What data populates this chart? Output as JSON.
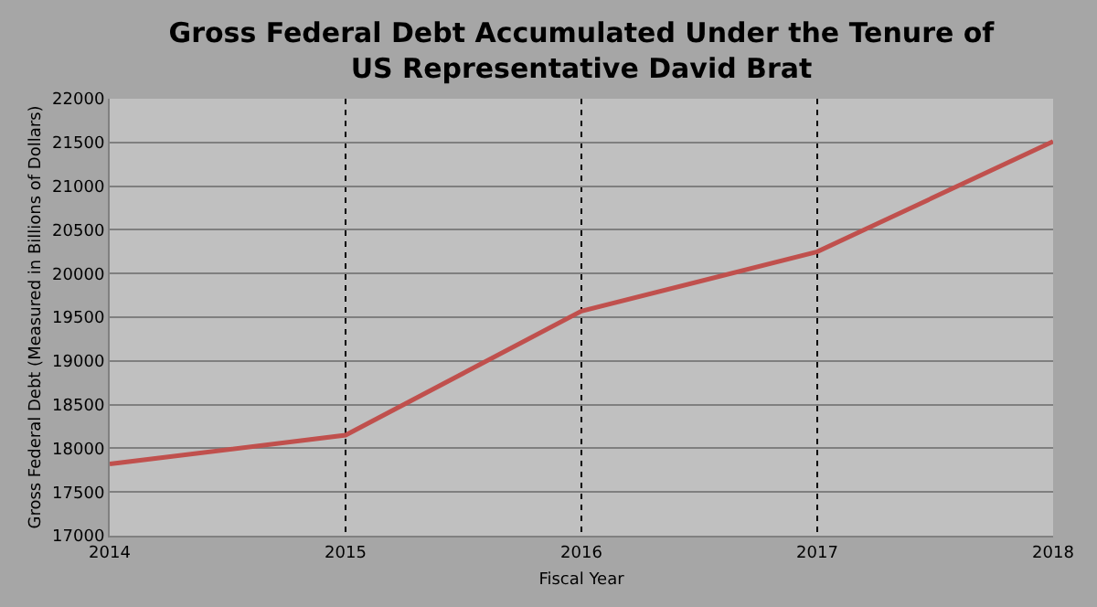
{
  "chart_data": {
    "type": "line",
    "title": "Gross Federal Debt Accumulated Under the Tenure of\nUS Representative David Brat",
    "xlabel": "Fiscal Year",
    "ylabel": "Gross Federal Debt (Measured in Billions of Dollars)",
    "x": [
      2014,
      2015,
      2016,
      2017,
      2018
    ],
    "series": [
      {
        "color": "#c0504d",
        "values": [
          17820,
          18150,
          19570,
          20250,
          21510
        ]
      }
    ],
    "xlim": [
      2014,
      2018
    ],
    "xticks": [
      2014,
      2015,
      2016,
      2017,
      2018
    ],
    "ylim": [
      17000,
      22000
    ],
    "yticks": [
      17000,
      17500,
      18000,
      18500,
      19000,
      19500,
      20000,
      20500,
      21000,
      21500,
      22000
    ],
    "grid": true,
    "marker": "none",
    "line_style": "solid"
  }
}
